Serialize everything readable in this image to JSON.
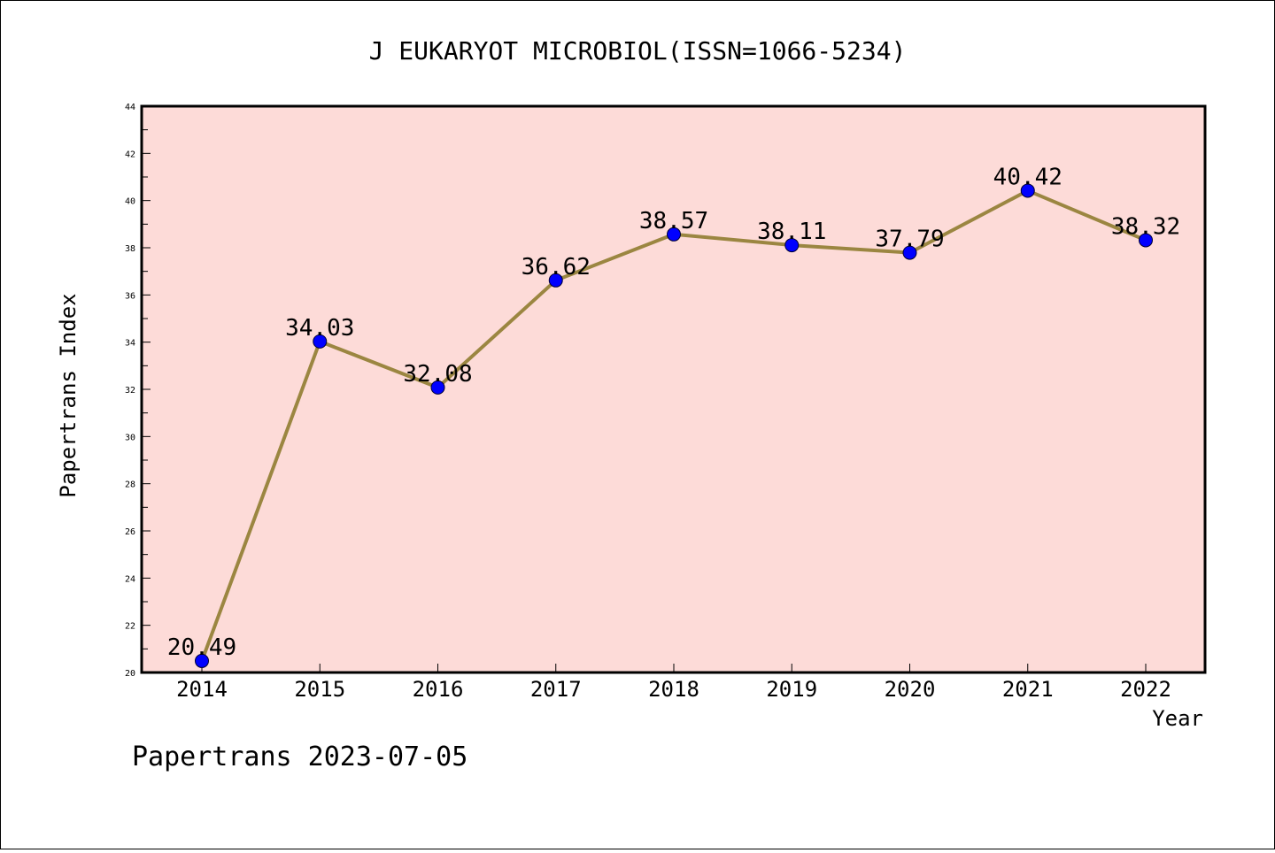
{
  "chart_data": {
    "type": "line",
    "title": "J EUKARYOT MICROBIOL(ISSN=1066-5234)",
    "xlabel": "Year",
    "ylabel": "Papertrans Index",
    "categories": [
      "2014",
      "2015",
      "2016",
      "2017",
      "2018",
      "2019",
      "2020",
      "2021",
      "2022"
    ],
    "values": [
      20.49,
      34.03,
      32.08,
      36.62,
      38.57,
      38.11,
      37.79,
      40.42,
      38.32
    ],
    "data_labels": [
      "20.49",
      "34.03",
      "32.08",
      "36.62",
      "38.57",
      "38.11",
      "37.79",
      "40.42",
      "38.32"
    ],
    "ylim": [
      20,
      44
    ],
    "y_ticks": [
      "20",
      "22",
      "24",
      "26",
      "28",
      "30",
      "32",
      "34",
      "36",
      "38",
      "40",
      "42",
      "44"
    ],
    "grid": false,
    "colors": {
      "plot_background": "#fddbd8",
      "line": "#9b8641",
      "marker": "#0000ff"
    }
  },
  "footer": "Papertrans 2023-07-05"
}
